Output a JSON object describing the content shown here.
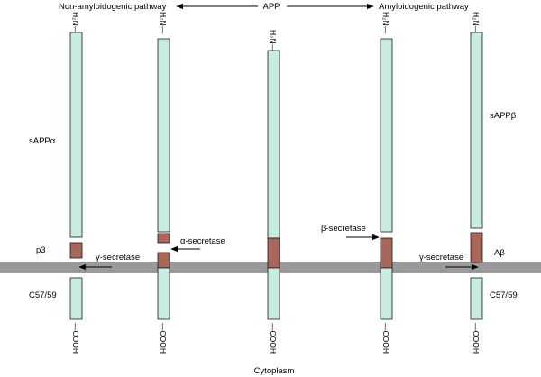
{
  "header": {
    "left": "Non-amyloidogenic pathway",
    "center": "APP",
    "right": "Amyloidogenic pathway"
  },
  "termini": {
    "n": "H₂N—",
    "c": "—COOH"
  },
  "labels": {
    "sappa": "sAPPα",
    "sappb": "sAPPβ",
    "p3": "p3",
    "abeta": "Aβ",
    "c57_left": "C57/59",
    "c57_right": "C57/59",
    "gamma_left": "γ-secretase",
    "alpha": "α-secretase",
    "beta": "β-secretase",
    "gamma_right": "γ-secretase",
    "cytoplasm": "Cytoplasm"
  },
  "colors": {
    "protein": "#c8ecdf",
    "abeta_domain": "#a9665a",
    "membrane": "#9a9a9a"
  }
}
